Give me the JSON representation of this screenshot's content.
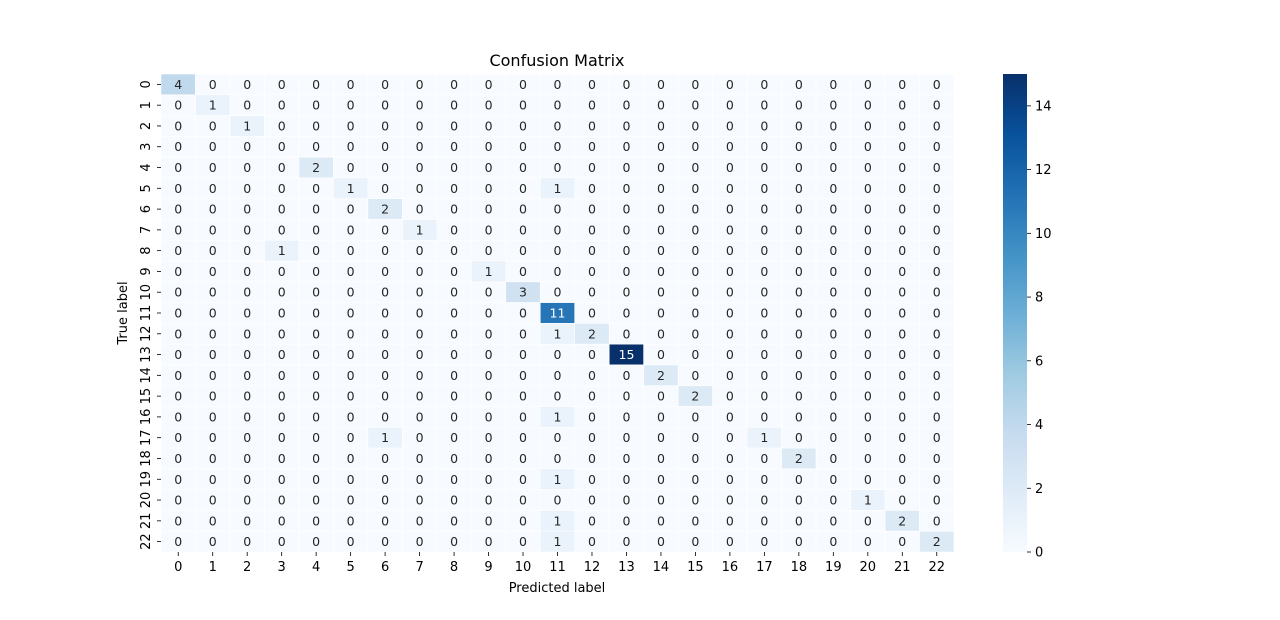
{
  "chart_data": {
    "type": "heatmap",
    "title": "Confusion Matrix",
    "xlabel": "Predicted label",
    "ylabel": "True label",
    "x_categories": [
      "0",
      "1",
      "2",
      "3",
      "4",
      "5",
      "6",
      "7",
      "8",
      "9",
      "10",
      "11",
      "12",
      "13",
      "14",
      "15",
      "16",
      "17",
      "18",
      "19",
      "20",
      "21",
      "22"
    ],
    "y_categories": [
      "0",
      "1",
      "2",
      "3",
      "4",
      "5",
      "6",
      "7",
      "8",
      "9",
      "10",
      "11",
      "12",
      "13",
      "14",
      "15",
      "16",
      "17",
      "18",
      "19",
      "20",
      "21",
      "22"
    ],
    "colormap": "Blues",
    "color_min": "#f7fbff",
    "color_max": "#08306b",
    "vmin": 0,
    "vmax": 15,
    "colorbar_ticks": [
      "0",
      "2",
      "4",
      "6",
      "8",
      "10",
      "12",
      "14"
    ],
    "annotations": true,
    "matrix": [
      [
        4,
        0,
        0,
        0,
        0,
        0,
        0,
        0,
        0,
        0,
        0,
        0,
        0,
        0,
        0,
        0,
        0,
        0,
        0,
        0,
        0,
        0,
        0
      ],
      [
        0,
        1,
        0,
        0,
        0,
        0,
        0,
        0,
        0,
        0,
        0,
        0,
        0,
        0,
        0,
        0,
        0,
        0,
        0,
        0,
        0,
        0,
        0
      ],
      [
        0,
        0,
        1,
        0,
        0,
        0,
        0,
        0,
        0,
        0,
        0,
        0,
        0,
        0,
        0,
        0,
        0,
        0,
        0,
        0,
        0,
        0,
        0
      ],
      [
        0,
        0,
        0,
        0,
        0,
        0,
        0,
        0,
        0,
        0,
        0,
        0,
        0,
        0,
        0,
        0,
        0,
        0,
        0,
        0,
        0,
        0,
        0
      ],
      [
        0,
        0,
        0,
        0,
        2,
        0,
        0,
        0,
        0,
        0,
        0,
        0,
        0,
        0,
        0,
        0,
        0,
        0,
        0,
        0,
        0,
        0,
        0
      ],
      [
        0,
        0,
        0,
        0,
        0,
        1,
        0,
        0,
        0,
        0,
        0,
        1,
        0,
        0,
        0,
        0,
        0,
        0,
        0,
        0,
        0,
        0,
        0
      ],
      [
        0,
        0,
        0,
        0,
        0,
        0,
        2,
        0,
        0,
        0,
        0,
        0,
        0,
        0,
        0,
        0,
        0,
        0,
        0,
        0,
        0,
        0,
        0
      ],
      [
        0,
        0,
        0,
        0,
        0,
        0,
        0,
        1,
        0,
        0,
        0,
        0,
        0,
        0,
        0,
        0,
        0,
        0,
        0,
        0,
        0,
        0,
        0
      ],
      [
        0,
        0,
        0,
        1,
        0,
        0,
        0,
        0,
        0,
        0,
        0,
        0,
        0,
        0,
        0,
        0,
        0,
        0,
        0,
        0,
        0,
        0,
        0
      ],
      [
        0,
        0,
        0,
        0,
        0,
        0,
        0,
        0,
        0,
        1,
        0,
        0,
        0,
        0,
        0,
        0,
        0,
        0,
        0,
        0,
        0,
        0,
        0
      ],
      [
        0,
        0,
        0,
        0,
        0,
        0,
        0,
        0,
        0,
        0,
        3,
        0,
        0,
        0,
        0,
        0,
        0,
        0,
        0,
        0,
        0,
        0,
        0
      ],
      [
        0,
        0,
        0,
        0,
        0,
        0,
        0,
        0,
        0,
        0,
        0,
        11,
        0,
        0,
        0,
        0,
        0,
        0,
        0,
        0,
        0,
        0,
        0
      ],
      [
        0,
        0,
        0,
        0,
        0,
        0,
        0,
        0,
        0,
        0,
        0,
        1,
        2,
        0,
        0,
        0,
        0,
        0,
        0,
        0,
        0,
        0,
        0
      ],
      [
        0,
        0,
        0,
        0,
        0,
        0,
        0,
        0,
        0,
        0,
        0,
        0,
        0,
        15,
        0,
        0,
        0,
        0,
        0,
        0,
        0,
        0,
        0
      ],
      [
        0,
        0,
        0,
        0,
        0,
        0,
        0,
        0,
        0,
        0,
        0,
        0,
        0,
        0,
        2,
        0,
        0,
        0,
        0,
        0,
        0,
        0,
        0
      ],
      [
        0,
        0,
        0,
        0,
        0,
        0,
        0,
        0,
        0,
        0,
        0,
        0,
        0,
        0,
        0,
        2,
        0,
        0,
        0,
        0,
        0,
        0,
        0
      ],
      [
        0,
        0,
        0,
        0,
        0,
        0,
        0,
        0,
        0,
        0,
        0,
        1,
        0,
        0,
        0,
        0,
        0,
        0,
        0,
        0,
        0,
        0,
        0
      ],
      [
        0,
        0,
        0,
        0,
        0,
        0,
        1,
        0,
        0,
        0,
        0,
        0,
        0,
        0,
        0,
        0,
        0,
        1,
        0,
        0,
        0,
        0,
        0
      ],
      [
        0,
        0,
        0,
        0,
        0,
        0,
        0,
        0,
        0,
        0,
        0,
        0,
        0,
        0,
        0,
        0,
        0,
        0,
        2,
        0,
        0,
        0,
        0
      ],
      [
        0,
        0,
        0,
        0,
        0,
        0,
        0,
        0,
        0,
        0,
        0,
        1,
        0,
        0,
        0,
        0,
        0,
        0,
        0,
        0,
        0,
        0,
        0
      ],
      [
        0,
        0,
        0,
        0,
        0,
        0,
        0,
        0,
        0,
        0,
        0,
        0,
        0,
        0,
        0,
        0,
        0,
        0,
        0,
        0,
        1,
        0,
        0
      ],
      [
        0,
        0,
        0,
        0,
        0,
        0,
        0,
        0,
        0,
        0,
        0,
        1,
        0,
        0,
        0,
        0,
        0,
        0,
        0,
        0,
        0,
        2,
        0
      ],
      [
        0,
        0,
        0,
        0,
        0,
        0,
        0,
        0,
        0,
        0,
        0,
        1,
        0,
        0,
        0,
        0,
        0,
        0,
        0,
        0,
        0,
        0,
        2
      ]
    ]
  }
}
